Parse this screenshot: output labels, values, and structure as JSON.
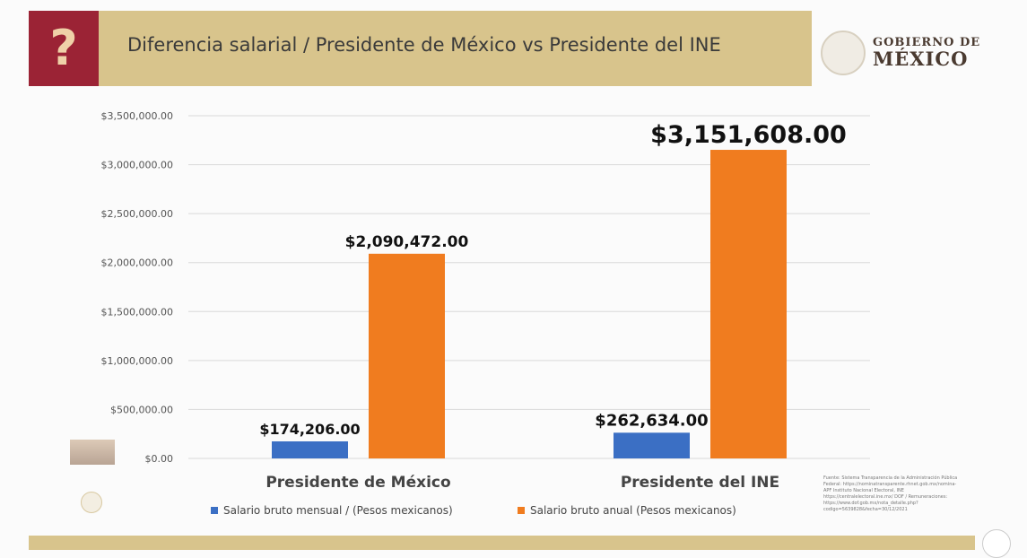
{
  "header": {
    "title": "Diferencia salarial / Presidente de México vs Presidente del INE",
    "icon": "question-mark-icon",
    "logo_line1": "GOBIERNO DE",
    "logo_line2": "MÉXICO"
  },
  "colors": {
    "header": "#d8c48c",
    "accent": "#9b2335",
    "mensual": "#3b6fc4",
    "anual": "#f07c1f"
  },
  "chart_data": {
    "type": "bar",
    "categories": [
      "Presidente de México",
      "Presidente del INE"
    ],
    "series": [
      {
        "name": "Salario bruto mensual / (Pesos mexicanos)",
        "values": [
          174206,
          262634
        ],
        "labels": [
          "$174,206.00",
          "$262,634.00"
        ]
      },
      {
        "name": "Salario bruto anual (Pesos mexicanos)",
        "values": [
          2090472,
          3151608
        ],
        "labels": [
          "$2,090,472.00",
          "$3,151,608.00"
        ]
      }
    ],
    "ylim": [
      0,
      3500000
    ],
    "yticks": [
      "$0.00",
      "$500,000.00",
      "$1,000,000.00",
      "$1,500,000.00",
      "$2,000,000.00",
      "$2,500,000.00",
      "$3,000,000.00",
      "$3,500,000.00"
    ],
    "grid": true,
    "legend": "bottom"
  },
  "source": "Fuente: Sistema Transparencia de la Administración Pública Federal: https://nominatransparente.rhnet.gob.mx/nomina-APF Instituto Nacional Electoral, INE https://centralelectoral.ine.mx/ DOF / Remuneraciones: https://www.dof.gob.mx/nota_detalle.php?codigo=5639828&fecha=30/12/2021"
}
